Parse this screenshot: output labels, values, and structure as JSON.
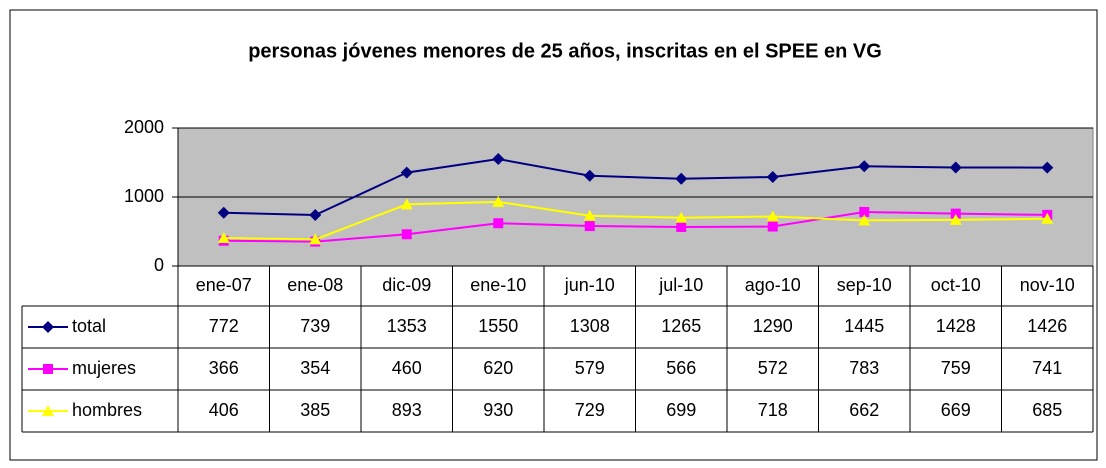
{
  "chart_data": {
    "type": "line",
    "title": "personas jóvenes menores de 25 años, inscritas en el SPEE en VG",
    "categories": [
      "ene-07",
      "ene-08",
      "dic-09",
      "ene-10",
      "jun-10",
      "jul-10",
      "ago-10",
      "sep-10",
      "oct-10",
      "nov-10"
    ],
    "series": [
      {
        "name": "total",
        "color": "#000080",
        "marker": "diamond",
        "values": [
          772,
          739,
          1353,
          1550,
          1308,
          1265,
          1290,
          1445,
          1428,
          1426
        ]
      },
      {
        "name": "mujeres",
        "color": "#ff00ff",
        "marker": "square",
        "values": [
          366,
          354,
          460,
          620,
          579,
          566,
          572,
          783,
          759,
          741
        ]
      },
      {
        "name": "hombres",
        "color": "#ffff00",
        "marker": "triangle",
        "values": [
          406,
          385,
          893,
          930,
          729,
          699,
          718,
          662,
          669,
          685
        ]
      }
    ],
    "ylim": [
      0,
      2000
    ],
    "yticks": [
      0,
      1000,
      2000
    ],
    "grid": true,
    "plot_background": "#c0c0c0"
  }
}
